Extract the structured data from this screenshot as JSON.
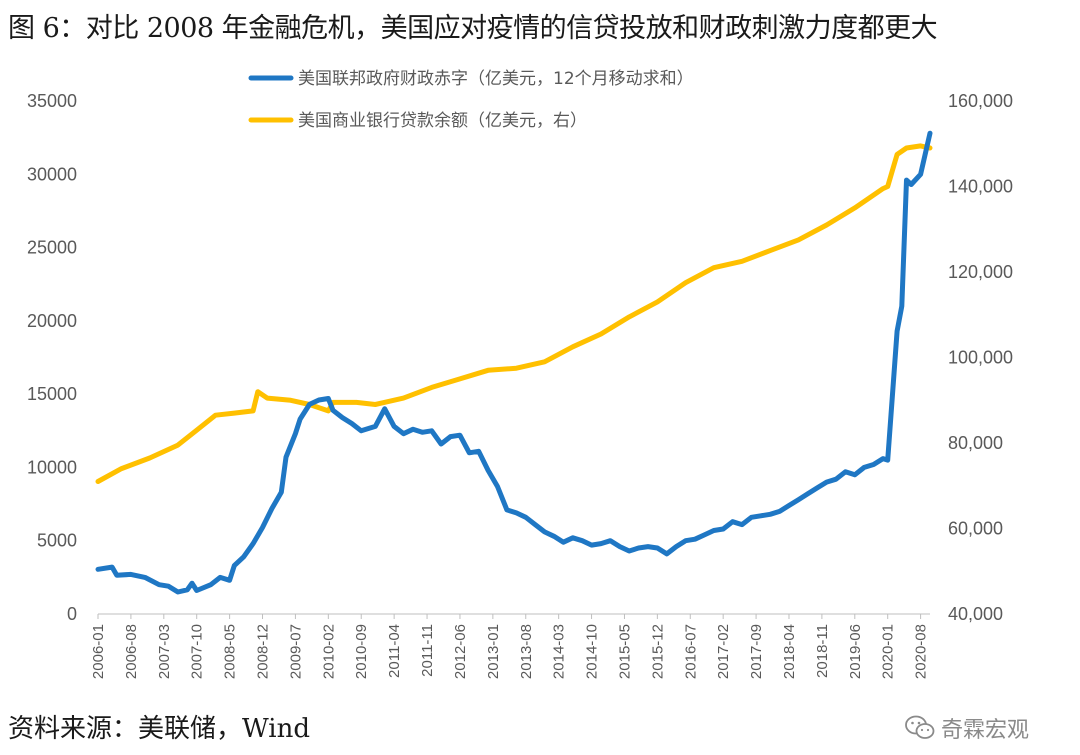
{
  "title": "图 6：对比 2008 年金融危机，美国应对疫情的信贷投放和财政刺激力度都更大",
  "source": "资料来源：美联储，Wind",
  "watermark": {
    "text": "奇霖宏观",
    "icon": "wechat-icon"
  },
  "chart_data": {
    "type": "line",
    "title": "图 6：对比 2008 年金融危机，美国应对疫情的信贷投放和财政刺激力度都更大",
    "left_axis": {
      "ylim": [
        0,
        35000
      ],
      "ticks": [
        "0",
        "5000",
        "10000",
        "15000",
        "20000",
        "25000",
        "30000",
        "35000"
      ]
    },
    "right_axis": {
      "ylim": [
        40000,
        160000
      ],
      "ticks": [
        "40,000",
        "60,000",
        "80,000",
        "100,000",
        "120,000",
        "140,000",
        "160,000"
      ]
    },
    "x_ticks": [
      "2006-01",
      "2006-08",
      "2007-03",
      "2007-10",
      "2008-05",
      "2008-12",
      "2009-07",
      "2010-02",
      "2010-09",
      "2011-04",
      "2011-11",
      "2012-06",
      "2013-01",
      "2013-08",
      "2014-03",
      "2014-10",
      "2015-05",
      "2015-12",
      "2016-07",
      "2017-02",
      "2017-09",
      "2018-04",
      "2018-11",
      "2019-06",
      "2020-01",
      "2020-08"
    ],
    "legend_position": "top",
    "series": [
      {
        "name": "美国联邦政府财政赤字（亿美元，12个月移动求和）",
        "axis": "left",
        "color": "#1f77c4",
        "points": [
          [
            "2006-01",
            3050
          ],
          [
            "2006-04",
            3200
          ],
          [
            "2006-05",
            2650
          ],
          [
            "2006-08",
            2700
          ],
          [
            "2006-11",
            2500
          ],
          [
            "2007-02",
            2000
          ],
          [
            "2007-04",
            1900
          ],
          [
            "2007-06",
            1500
          ],
          [
            "2007-08",
            1650
          ],
          [
            "2007-09",
            2100
          ],
          [
            "2007-10",
            1600
          ],
          [
            "2008-01",
            2000
          ],
          [
            "2008-03",
            2500
          ],
          [
            "2008-05",
            2300
          ],
          [
            "2008-06",
            3300
          ],
          [
            "2008-08",
            3900
          ],
          [
            "2008-10",
            4800
          ],
          [
            "2008-12",
            5900
          ],
          [
            "2009-02",
            7200
          ],
          [
            "2009-04",
            8300
          ],
          [
            "2009-05",
            10700
          ],
          [
            "2009-07",
            12300
          ],
          [
            "2009-08",
            13300
          ],
          [
            "2009-10",
            14300
          ],
          [
            "2009-12",
            14600
          ],
          [
            "2010-02",
            14700
          ],
          [
            "2010-03",
            13900
          ],
          [
            "2010-05",
            13400
          ],
          [
            "2010-07",
            13000
          ],
          [
            "2010-09",
            12500
          ],
          [
            "2010-12",
            12800
          ],
          [
            "2011-02",
            14000
          ],
          [
            "2011-04",
            12800
          ],
          [
            "2011-06",
            12300
          ],
          [
            "2011-08",
            12600
          ],
          [
            "2011-10",
            12400
          ],
          [
            "2011-12",
            12500
          ],
          [
            "2012-02",
            11600
          ],
          [
            "2012-04",
            12100
          ],
          [
            "2012-06",
            12200
          ],
          [
            "2012-08",
            11000
          ],
          [
            "2012-10",
            11100
          ],
          [
            "2012-12",
            9800
          ],
          [
            "2013-02",
            8700
          ],
          [
            "2013-04",
            7100
          ],
          [
            "2013-06",
            6900
          ],
          [
            "2013-08",
            6600
          ],
          [
            "2013-10",
            6100
          ],
          [
            "2013-12",
            5600
          ],
          [
            "2014-02",
            5300
          ],
          [
            "2014-04",
            4900
          ],
          [
            "2014-06",
            5200
          ],
          [
            "2014-08",
            5000
          ],
          [
            "2014-10",
            4700
          ],
          [
            "2014-12",
            4800
          ],
          [
            "2015-02",
            5000
          ],
          [
            "2015-04",
            4600
          ],
          [
            "2015-06",
            4300
          ],
          [
            "2015-08",
            4500
          ],
          [
            "2015-10",
            4600
          ],
          [
            "2015-12",
            4500
          ],
          [
            "2016-02",
            4100
          ],
          [
            "2016-04",
            4600
          ],
          [
            "2016-06",
            5000
          ],
          [
            "2016-08",
            5100
          ],
          [
            "2016-10",
            5400
          ],
          [
            "2016-12",
            5700
          ],
          [
            "2017-02",
            5800
          ],
          [
            "2017-04",
            6300
          ],
          [
            "2017-06",
            6100
          ],
          [
            "2017-08",
            6600
          ],
          [
            "2017-10",
            6700
          ],
          [
            "2017-12",
            6800
          ],
          [
            "2018-02",
            7000
          ],
          [
            "2018-04",
            7400
          ],
          [
            "2018-06",
            7800
          ],
          [
            "2018-08",
            8200
          ],
          [
            "2018-10",
            8600
          ],
          [
            "2018-12",
            9000
          ],
          [
            "2019-02",
            9200
          ],
          [
            "2019-04",
            9700
          ],
          [
            "2019-06",
            9500
          ],
          [
            "2019-08",
            10000
          ],
          [
            "2019-10",
            10200
          ],
          [
            "2019-12",
            10600
          ],
          [
            "2020-01",
            10500
          ],
          [
            "2020-03",
            19300
          ],
          [
            "2020-04",
            21000
          ],
          [
            "2020-05",
            29600
          ],
          [
            "2020-06",
            29300
          ],
          [
            "2020-08",
            30000
          ],
          [
            "2020-10",
            32800
          ]
        ]
      },
      {
        "name": "美国商业银行贷款余额（亿美元，右）",
        "axis": "right",
        "color": "#ffc000",
        "points": [
          [
            "2006-01",
            71000
          ],
          [
            "2006-06",
            74000
          ],
          [
            "2006-12",
            76500
          ],
          [
            "2007-06",
            79500
          ],
          [
            "2007-10",
            83000
          ],
          [
            "2008-02",
            86500
          ],
          [
            "2008-06",
            87000
          ],
          [
            "2008-10",
            87500
          ],
          [
            "2008-11",
            92000
          ],
          [
            "2009-01",
            90500
          ],
          [
            "2009-06",
            90000
          ],
          [
            "2009-10",
            89000
          ],
          [
            "2010-02",
            87500
          ],
          [
            "2010-03",
            89500
          ],
          [
            "2010-08",
            89500
          ],
          [
            "2010-12",
            89000
          ],
          [
            "2011-06",
            90500
          ],
          [
            "2011-12",
            93000
          ],
          [
            "2012-06",
            95000
          ],
          [
            "2012-12",
            97000
          ],
          [
            "2013-06",
            97500
          ],
          [
            "2013-12",
            99000
          ],
          [
            "2014-06",
            102500
          ],
          [
            "2014-12",
            105500
          ],
          [
            "2015-06",
            109500
          ],
          [
            "2015-12",
            113000
          ],
          [
            "2016-06",
            117500
          ],
          [
            "2016-12",
            121000
          ],
          [
            "2017-06",
            122500
          ],
          [
            "2017-12",
            125000
          ],
          [
            "2018-06",
            127500
          ],
          [
            "2018-12",
            131000
          ],
          [
            "2019-06",
            135000
          ],
          [
            "2019-12",
            139500
          ],
          [
            "2020-01",
            140000
          ],
          [
            "2020-03",
            147500
          ],
          [
            "2020-05",
            149000
          ],
          [
            "2020-08",
            149500
          ],
          [
            "2020-10",
            149000
          ]
        ]
      }
    ]
  }
}
